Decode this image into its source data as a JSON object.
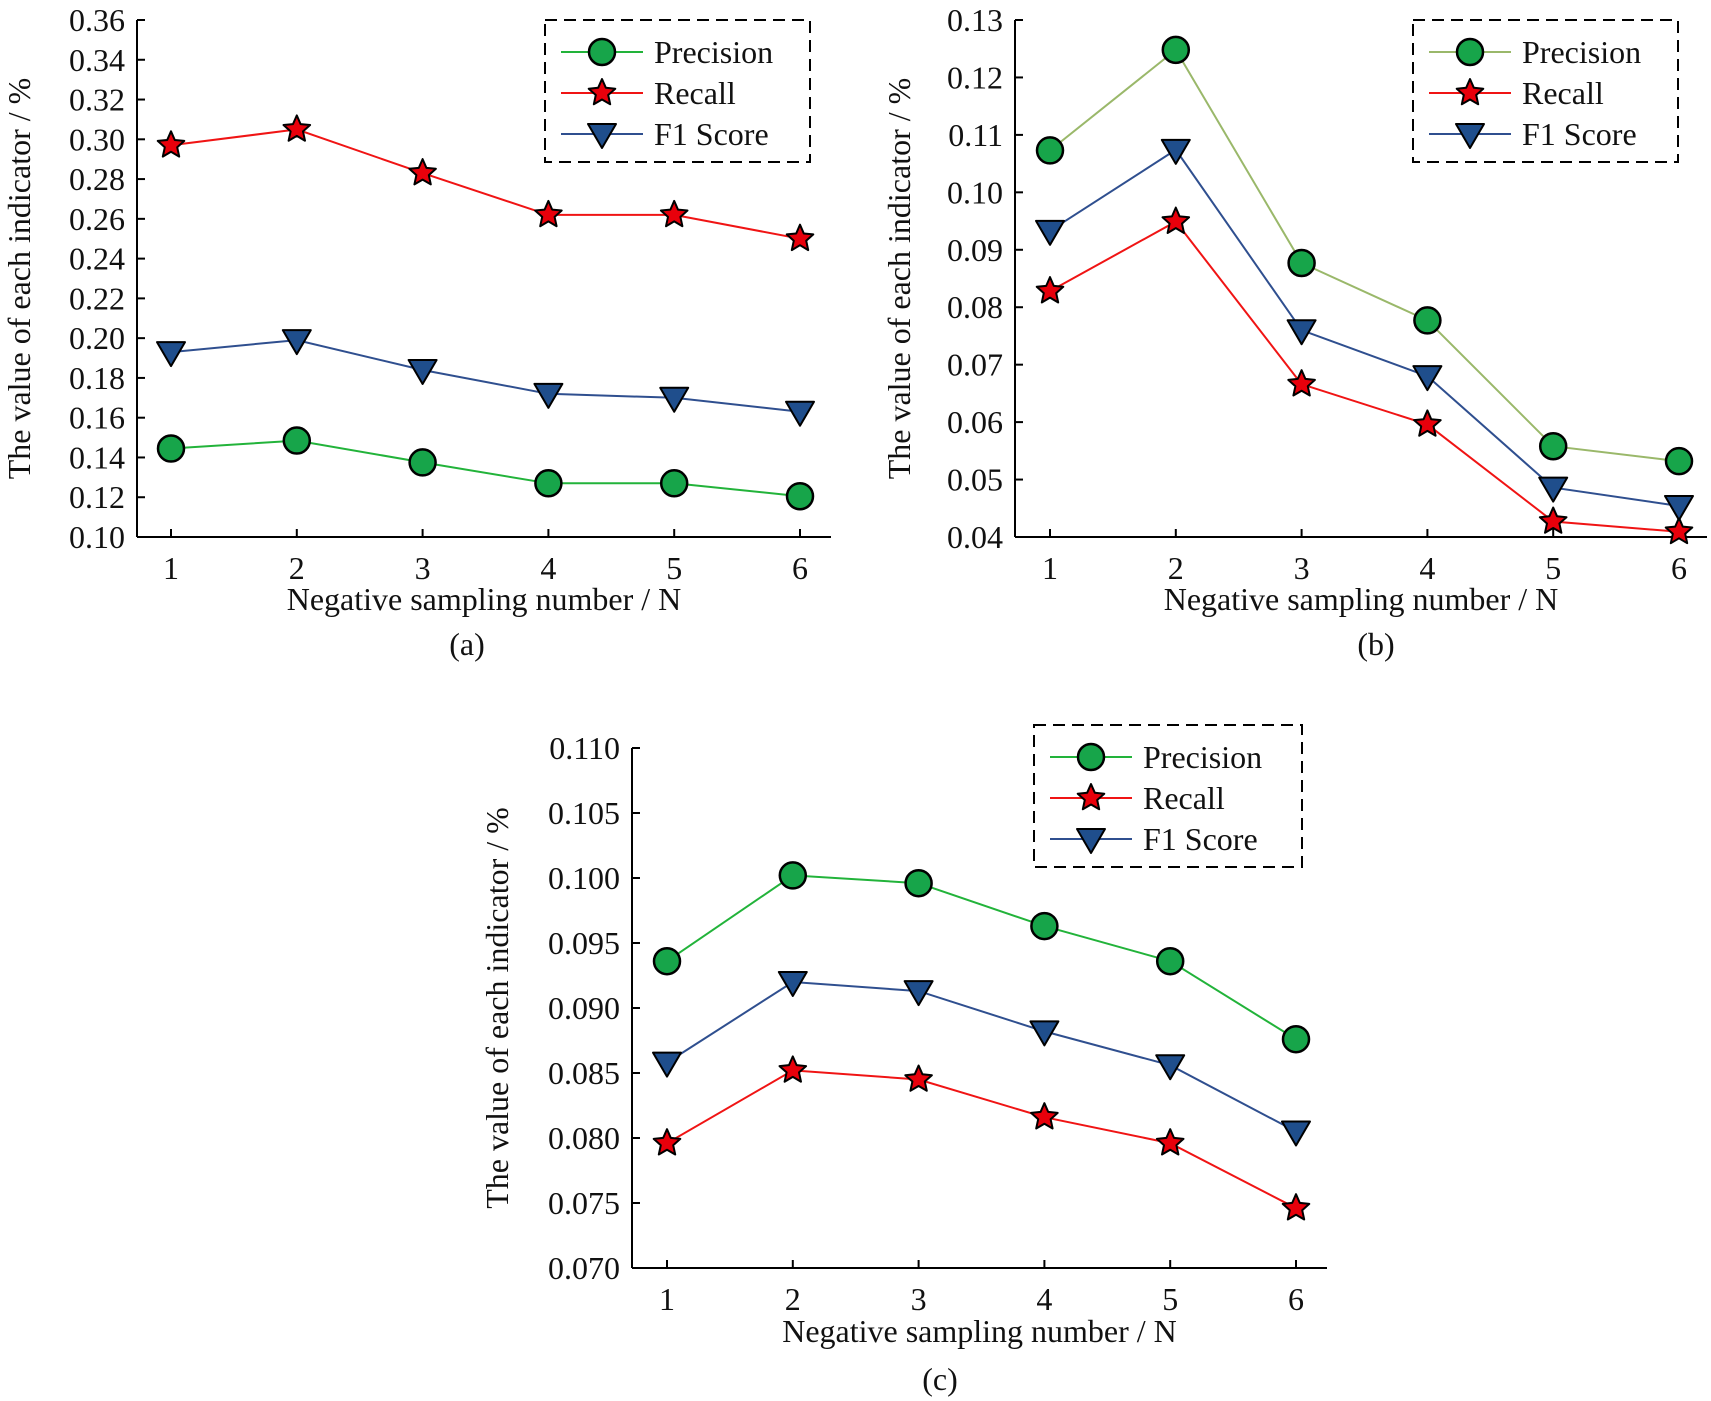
{
  "chart_data": [
    {
      "type": "line",
      "panel": "(a)",
      "xlabel": "Negative sampling number / N",
      "ylabel": "The value of each indicator / %",
      "x": [
        1,
        2,
        3,
        4,
        5,
        6
      ],
      "ylim": [
        0.1,
        0.36
      ],
      "yticks": [
        "0.10",
        "0.12",
        "0.14",
        "0.16",
        "0.18",
        "0.20",
        "0.22",
        "0.24",
        "0.26",
        "0.28",
        "0.30",
        "0.32",
        "0.34",
        "0.36"
      ],
      "xticks": [
        "1",
        "2",
        "3",
        "4",
        "5",
        "6"
      ],
      "legend": {
        "placement": "top-right",
        "entries": [
          "Precision",
          "Recall",
          "F1 Score"
        ]
      },
      "series": [
        {
          "name": "Precision",
          "values": [
            0.1445,
            0.1485,
            0.1375,
            0.127,
            0.127,
            0.1205
          ]
        },
        {
          "name": "Recall",
          "values": [
            0.297,
            0.305,
            0.283,
            0.262,
            0.262,
            0.25
          ]
        },
        {
          "name": "F1 Score",
          "values": [
            0.193,
            0.199,
            0.184,
            0.172,
            0.17,
            0.163
          ]
        }
      ]
    },
    {
      "type": "line",
      "panel": "(b)",
      "xlabel": "Negative sampling number / N",
      "ylabel": "The value of each indicator / %",
      "x": [
        1,
        2,
        3,
        4,
        5,
        6
      ],
      "ylim": [
        0.04,
        0.13
      ],
      "yticks": [
        "0.04",
        "0.05",
        "0.06",
        "0.07",
        "0.08",
        "0.09",
        "0.10",
        "0.11",
        "0.12",
        "0.13"
      ],
      "xticks": [
        "1",
        "2",
        "3",
        "4",
        "5",
        "6"
      ],
      "legend": {
        "placement": "top-right",
        "entries": [
          "Precision",
          "Recall",
          "F1 Score"
        ]
      },
      "series": [
        {
          "name": "Precision",
          "values": [
            0.1073,
            0.1248,
            0.0877,
            0.0777,
            0.0558,
            0.0532
          ]
        },
        {
          "name": "Recall",
          "values": [
            0.0828,
            0.0949,
            0.0666,
            0.0596,
            0.0427,
            0.0409
          ]
        },
        {
          "name": "F1 Score",
          "values": [
            0.0933,
            0.1074,
            0.076,
            0.068,
            0.0486,
            0.0454
          ]
        }
      ]
    },
    {
      "type": "line",
      "panel": "(c)",
      "xlabel": "Negative sampling number / N",
      "ylabel": "The value of each indicator / %",
      "x": [
        1,
        2,
        3,
        4,
        5,
        6
      ],
      "ylim": [
        0.07,
        0.11
      ],
      "yticks": [
        "0.070",
        "0.075",
        "0.080",
        "0.085",
        "0.090",
        "0.095",
        "0.100",
        "0.105",
        "0.110"
      ],
      "xticks": [
        "1",
        "2",
        "3",
        "4",
        "5",
        "6"
      ],
      "legend": {
        "placement": "top-right",
        "entries": [
          "Precision",
          "Recall",
          "F1 Score"
        ]
      },
      "series": [
        {
          "name": "Precision",
          "values": [
            0.0936,
            0.1002,
            0.0996,
            0.0963,
            0.0936,
            0.0876
          ]
        },
        {
          "name": "Recall",
          "values": [
            0.0796,
            0.0852,
            0.0845,
            0.0816,
            0.0796,
            0.0746
          ]
        },
        {
          "name": "F1 Score",
          "values": [
            0.0858,
            0.092,
            0.0913,
            0.0882,
            0.0856,
            0.0805
          ]
        }
      ]
    }
  ],
  "colors": {
    "axis": "#000000",
    "precision_marker": "#17a54a",
    "recall_marker": "#e8000b",
    "f1_marker": "#1f4e8c",
    "precision_line_a": "#22b33a",
    "precision_line_b": "#9ab86a",
    "precision_line_c": "#22b33a",
    "recall_line": "#f01414",
    "f1_line": "#2f4f8f"
  }
}
